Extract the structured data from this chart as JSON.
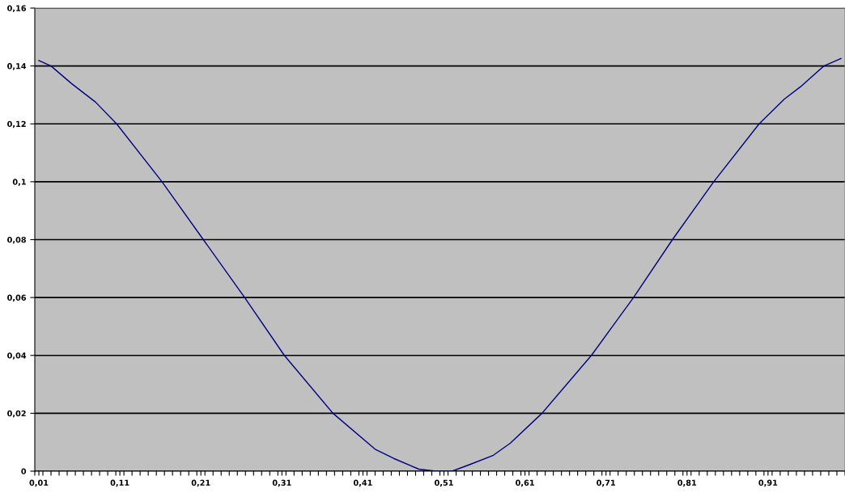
{
  "chart_data": {
    "type": "line",
    "x": [
      0.01,
      0.025,
      0.05,
      0.08,
      0.106,
      0.162,
      0.213,
      0.264,
      0.313,
      0.373,
      0.425,
      0.448,
      0.479,
      0.5,
      0.52,
      0.542,
      0.571,
      0.592,
      0.631,
      0.692,
      0.744,
      0.792,
      0.843,
      0.899,
      0.93,
      0.95,
      0.979,
      1.0
    ],
    "series": [
      {
        "color": "#000080",
        "values": [
          0.1419,
          0.14,
          0.134,
          0.1275,
          0.12,
          0.1,
          0.08,
          0.06,
          0.04,
          0.02,
          0.0076,
          0.0044,
          0.0007,
          0,
          0,
          0.0023,
          0.0055,
          0.0097,
          0.02,
          0.04,
          0.06,
          0.08,
          0.1,
          0.12,
          0.1285,
          0.1328,
          0.14,
          0.1426
        ]
      }
    ],
    "xlim": [
      0.005,
      1.005
    ],
    "xticks": [
      {
        "value": 0.01,
        "label": "0,01"
      },
      {
        "value": 0.11,
        "label": "0,11"
      },
      {
        "value": 0.21,
        "label": "0,21"
      },
      {
        "value": 0.31,
        "label": "0,31"
      },
      {
        "value": 0.41,
        "label": "0,41"
      },
      {
        "value": 0.51,
        "label": "0,51"
      },
      {
        "value": 0.61,
        "label": "0,61"
      },
      {
        "value": 0.71,
        "label": "0,71"
      },
      {
        "value": 0.81,
        "label": "0,81"
      },
      {
        "value": 0.91,
        "label": "0,91"
      },
      {
        "value": 0.005,
        "label": null
      },
      {
        "value": 0.015,
        "label": null
      },
      {
        "value": 0.025,
        "label": null
      },
      {
        "value": 0.035,
        "label": null
      },
      {
        "value": 0.045,
        "label": null
      },
      {
        "value": 0.055,
        "label": null
      },
      {
        "value": 0.065,
        "label": null
      },
      {
        "value": 0.075,
        "label": null
      },
      {
        "value": 0.085,
        "label": null
      },
      {
        "value": 0.095,
        "label": null
      },
      {
        "value": 0.105,
        "label": null
      },
      {
        "value": 0.115,
        "label": null
      },
      {
        "value": 0.125,
        "label": null
      },
      {
        "value": 0.135,
        "label": null
      },
      {
        "value": 0.145,
        "label": null
      },
      {
        "value": 0.155,
        "label": null
      },
      {
        "value": 0.165,
        "label": null
      },
      {
        "value": 0.175,
        "label": null
      },
      {
        "value": 0.185,
        "label": null
      },
      {
        "value": 0.195,
        "label": null
      },
      {
        "value": 0.205,
        "label": null
      },
      {
        "value": 0.215,
        "label": null
      },
      {
        "value": 0.225,
        "label": null
      },
      {
        "value": 0.235,
        "label": null
      },
      {
        "value": 0.245,
        "label": null
      },
      {
        "value": 0.255,
        "label": null
      },
      {
        "value": 0.265,
        "label": null
      },
      {
        "value": 0.275,
        "label": null
      },
      {
        "value": 0.285,
        "label": null
      },
      {
        "value": 0.295,
        "label": null
      },
      {
        "value": 0.305,
        "label": null
      },
      {
        "value": 0.315,
        "label": null
      },
      {
        "value": 0.325,
        "label": null
      },
      {
        "value": 0.335,
        "label": null
      },
      {
        "value": 0.345,
        "label": null
      },
      {
        "value": 0.355,
        "label": null
      },
      {
        "value": 0.365,
        "label": null
      },
      {
        "value": 0.375,
        "label": null
      },
      {
        "value": 0.385,
        "label": null
      },
      {
        "value": 0.395,
        "label": null
      },
      {
        "value": 0.405,
        "label": null
      },
      {
        "value": 0.415,
        "label": null
      },
      {
        "value": 0.425,
        "label": null
      },
      {
        "value": 0.435,
        "label": null
      },
      {
        "value": 0.445,
        "label": null
      },
      {
        "value": 0.455,
        "label": null
      },
      {
        "value": 0.465,
        "label": null
      },
      {
        "value": 0.475,
        "label": null
      },
      {
        "value": 0.485,
        "label": null
      },
      {
        "value": 0.495,
        "label": null
      },
      {
        "value": 0.505,
        "label": null
      },
      {
        "value": 0.515,
        "label": null
      },
      {
        "value": 0.525,
        "label": null
      },
      {
        "value": 0.535,
        "label": null
      },
      {
        "value": 0.545,
        "label": null
      },
      {
        "value": 0.555,
        "label": null
      },
      {
        "value": 0.565,
        "label": null
      },
      {
        "value": 0.575,
        "label": null
      },
      {
        "value": 0.585,
        "label": null
      },
      {
        "value": 0.595,
        "label": null
      },
      {
        "value": 0.605,
        "label": null
      },
      {
        "value": 0.615,
        "label": null
      },
      {
        "value": 0.625,
        "label": null
      },
      {
        "value": 0.635,
        "label": null
      },
      {
        "value": 0.645,
        "label": null
      },
      {
        "value": 0.655,
        "label": null
      },
      {
        "value": 0.665,
        "label": null
      },
      {
        "value": 0.675,
        "label": null
      },
      {
        "value": 0.685,
        "label": null
      },
      {
        "value": 0.695,
        "label": null
      },
      {
        "value": 0.705,
        "label": null
      },
      {
        "value": 0.715,
        "label": null
      },
      {
        "value": 0.725,
        "label": null
      },
      {
        "value": 0.735,
        "label": null
      },
      {
        "value": 0.745,
        "label": null
      },
      {
        "value": 0.755,
        "label": null
      },
      {
        "value": 0.765,
        "label": null
      },
      {
        "value": 0.775,
        "label": null
      },
      {
        "value": 0.785,
        "label": null
      },
      {
        "value": 0.795,
        "label": null
      },
      {
        "value": 0.805,
        "label": null
      },
      {
        "value": 0.815,
        "label": null
      },
      {
        "value": 0.825,
        "label": null
      },
      {
        "value": 0.835,
        "label": null
      },
      {
        "value": 0.845,
        "label": null
      },
      {
        "value": 0.855,
        "label": null
      },
      {
        "value": 0.865,
        "label": null
      },
      {
        "value": 0.875,
        "label": null
      },
      {
        "value": 0.885,
        "label": null
      },
      {
        "value": 0.895,
        "label": null
      },
      {
        "value": 0.905,
        "label": null
      },
      {
        "value": 0.915,
        "label": null
      },
      {
        "value": 0.925,
        "label": null
      },
      {
        "value": 0.935,
        "label": null
      },
      {
        "value": 0.945,
        "label": null
      },
      {
        "value": 0.955,
        "label": null
      },
      {
        "value": 0.965,
        "label": null
      },
      {
        "value": 0.975,
        "label": null
      },
      {
        "value": 0.985,
        "label": null
      },
      {
        "value": 0.995,
        "label": null
      },
      {
        "value": 1.005,
        "label": null
      }
    ],
    "ylim": [
      0,
      0.16
    ],
    "yticks": [
      0,
      {
        "value": 0.02,
        "label": "0,02"
      },
      {
        "value": 0.04,
        "label": "0,04"
      },
      {
        "value": 0.06,
        "label": "0,06"
      },
      {
        "value": 0.08,
        "label": "0,08"
      },
      {
        "value": 0.1,
        "label": "0,1"
      },
      {
        "value": 0.12,
        "label": "0,12"
      },
      {
        "value": 0.14,
        "label": "0,14"
      },
      {
        "value": 0.16,
        "label": "0,16"
      }
    ],
    "grid": "y",
    "marker": "none",
    "line_style": "solid",
    "legend": false
  }
}
